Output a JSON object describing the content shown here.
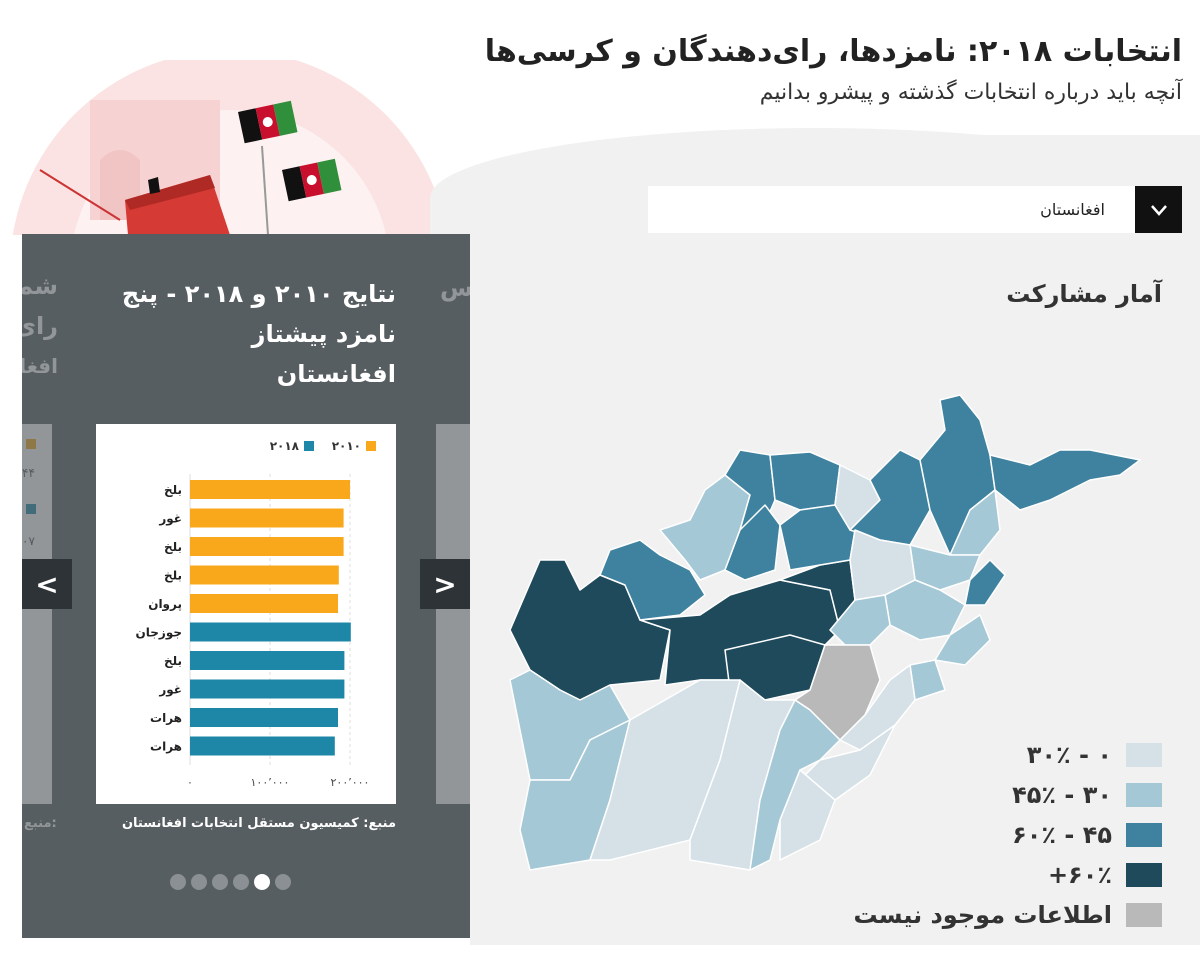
{
  "header": {
    "title": "انتخابات ۲۰۱۸: نامزدها، رای‌دهندگان و کرسی‌ها",
    "subtitle": "آنچه باید درباره انتخابات گذشته و پیشرو بدانیم"
  },
  "region_select": {
    "value": "افغانستان",
    "chevron_icon": "chevron-down-icon"
  },
  "stats": {
    "title": "آمار مشارکت"
  },
  "legend": [
    {
      "label": "۰ - ۳۰٪",
      "color": "#d5e1e7"
    },
    {
      "label": "۳۰ - ۴۵٪",
      "color": "#a5c8d6"
    },
    {
      "label": "۴۵ - ۶۰٪",
      "color": "#3f82a0"
    },
    {
      "label": "۶۰٪+",
      "color": "#1e4a5c"
    },
    {
      "label": "اطلاعات موجود نیست",
      "color": "#b9b9b9"
    }
  ],
  "carousel": {
    "card_title_line1": "نتایج ۲۰۱۰ و ۲۰۱۸ - پنج نامزد پیشتاز",
    "card_title_line2": "افغانستان",
    "source": "منبع: کمیسیون مستقل انتخابات افغانستان",
    "prev_label": "<",
    "next_label": ">",
    "ghost_left_lines": [
      "شم",
      "رای",
      "افغا"
    ],
    "ghost_left_legend": [
      "۴۴",
      "۰۷"
    ],
    "ghost_left_source": "منبع:",
    "ghost_right_lines": [
      "س"
    ],
    "dots": [
      false,
      false,
      false,
      false,
      true,
      false
    ]
  },
  "chart_data": {
    "type": "bar",
    "orientation": "horizontal",
    "categories": [
      "بلخ",
      "غور",
      "بلخ",
      "بلخ",
      "پروان",
      "جوزجان",
      "بلخ",
      "غور",
      "هرات",
      "هرات"
    ],
    "values": [
      200000,
      192000,
      192000,
      186000,
      185000,
      201000,
      193000,
      193000,
      185000,
      181000
    ],
    "series_of_bar": [
      "۲۰۱۰",
      "۲۰۱۰",
      "۲۰۱۰",
      "۲۰۱۰",
      "۲۰۱۰",
      "۲۰۱۸",
      "۲۰۱۸",
      "۲۰۱۸",
      "۲۰۱۸",
      "۲۰۱۸"
    ],
    "series": [
      {
        "name": "۲۰۱۰",
        "color": "#f8a81a"
      },
      {
        "name": "۲۰۱۸",
        "color": "#1e87a8"
      }
    ],
    "xlim": [
      0,
      220000
    ],
    "xticks": [
      "۰",
      "۱۰۰٬۰۰۰",
      "۲۰۰٬۰۰۰"
    ],
    "xtick_values": [
      0,
      100000,
      200000
    ],
    "legend_position": "top-right"
  }
}
